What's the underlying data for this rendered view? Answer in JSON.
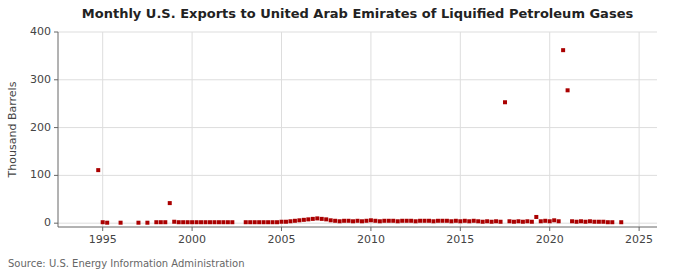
{
  "chart_data": {
    "type": "scatter",
    "title": "Monthly U.S. Exports to United Arab Emirates of Liquified Petroleum Gases",
    "ylabel": "Thousand Barrels",
    "annotations": [
      "Source: U.S. Energy Information Administration"
    ],
    "x": [
      1994.75,
      1995.0,
      1995.25,
      1996.0,
      1997.0,
      1997.5,
      1998.0,
      1998.25,
      1998.5,
      1998.75,
      1999.0,
      1999.25,
      1999.5,
      1999.75,
      2000.0,
      2000.25,
      2000.5,
      2000.75,
      2001.0,
      2001.25,
      2001.5,
      2001.75,
      2002.0,
      2002.25,
      2003.0,
      2003.25,
      2003.5,
      2003.75,
      2004.0,
      2004.25,
      2004.5,
      2004.75,
      2005.0,
      2005.25,
      2005.5,
      2005.75,
      2006.0,
      2006.25,
      2006.5,
      2006.75,
      2007.0,
      2007.25,
      2007.5,
      2007.75,
      2008.0,
      2008.25,
      2008.5,
      2008.75,
      2009.0,
      2009.25,
      2009.5,
      2009.75,
      2010.0,
      2010.25,
      2010.5,
      2010.75,
      2011.0,
      2011.25,
      2011.5,
      2011.75,
      2012.0,
      2012.25,
      2012.5,
      2012.75,
      2013.0,
      2013.25,
      2013.5,
      2013.75,
      2014.0,
      2014.25,
      2014.5,
      2014.75,
      2015.0,
      2015.25,
      2015.5,
      2015.75,
      2016.0,
      2016.25,
      2016.5,
      2016.75,
      2017.0,
      2017.25,
      2017.5,
      2017.75,
      2018.0,
      2018.25,
      2018.5,
      2018.75,
      2019.0,
      2019.25,
      2019.5,
      2019.75,
      2020.0,
      2020.25,
      2020.5,
      2020.75,
      2021.0,
      2021.25,
      2021.5,
      2021.75,
      2022.0,
      2022.25,
      2022.5,
      2022.75,
      2023.0,
      2023.25,
      2023.5,
      2024.0
    ],
    "values": [
      111,
      2,
      1,
      1,
      1,
      1,
      2,
      2,
      2,
      42,
      3,
      2,
      2,
      2,
      2,
      2,
      2,
      2,
      2,
      2,
      2,
      2,
      2,
      2,
      2,
      2,
      2,
      2,
      2,
      2,
      2,
      2,
      3,
      3,
      4,
      5,
      6,
      7,
      8,
      9,
      10,
      9,
      8,
      6,
      5,
      4,
      5,
      5,
      4,
      5,
      4,
      5,
      6,
      5,
      4,
      5,
      5,
      5,
      4,
      5,
      5,
      5,
      4,
      5,
      5,
      5,
      4,
      5,
      5,
      5,
      4,
      5,
      4,
      5,
      4,
      5,
      4,
      3,
      4,
      3,
      4,
      3,
      253,
      4,
      3,
      4,
      3,
      4,
      3,
      13,
      4,
      5,
      4,
      6,
      4,
      362,
      278,
      4,
      3,
      4,
      3,
      4,
      3,
      3,
      3,
      2,
      2,
      2
    ],
    "color": "#aa0000",
    "marker": "square",
    "xlim": [
      1992.5,
      2026
    ],
    "ylim": [
      -8,
      400
    ],
    "xticks": [
      1995,
      2000,
      2005,
      2010,
      2015,
      2020,
      2025
    ],
    "yticks": [
      0,
      100,
      200,
      300,
      400
    ],
    "grid": true
  }
}
